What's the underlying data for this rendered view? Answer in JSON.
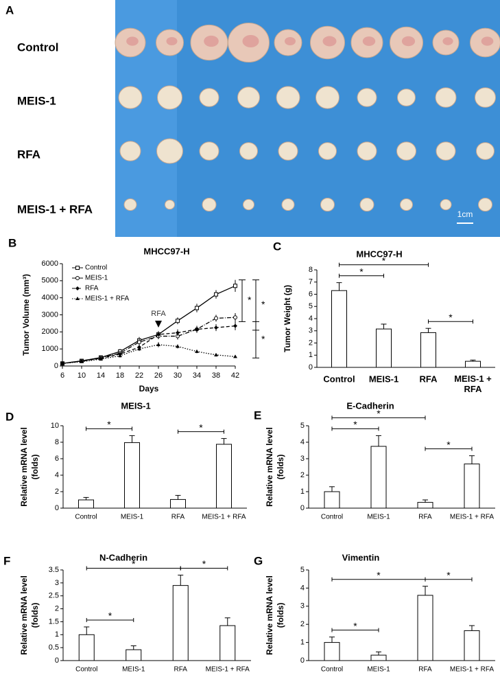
{
  "photo": {
    "panel": "A",
    "rows": [
      "Control",
      "MEIS-1",
      "RFA",
      "MEIS-1 + RFA"
    ],
    "scale_bar": "1cm"
  },
  "chart_data": [
    {
      "panel": "B",
      "type": "line",
      "title": "MHCC97-H",
      "xlabel": "Days",
      "ylabel": "Tumor Volume (mm³)",
      "x": [
        6,
        10,
        14,
        18,
        22,
        26,
        30,
        34,
        38,
        42
      ],
      "xlim": [
        6,
        42
      ],
      "xticks": [
        6,
        10,
        14,
        18,
        22,
        26,
        30,
        34,
        38,
        42
      ],
      "ylim": [
        0,
        6000
      ],
      "yticks": [
        0,
        1000,
        2000,
        3000,
        4000,
        5000,
        6000
      ],
      "legend": "top-left",
      "series": [
        {
          "name": "Control",
          "color": "#000000",
          "values": [
            150,
            300,
            500,
            850,
            1500,
            1850,
            2650,
            3400,
            4200,
            4700
          ],
          "errors": [
            80,
            90,
            100,
            150,
            200,
            200,
            200,
            250,
            250,
            350
          ]
        },
        {
          "name": "MEIS-1",
          "color": "#000000",
          "values": [
            150,
            300,
            480,
            750,
            1400,
            1750,
            1750,
            2150,
            2800,
            2850
          ],
          "errors": [
            80,
            80,
            100,
            120,
            180,
            180,
            200,
            200,
            200,
            250
          ]
        },
        {
          "name": "RFA",
          "color": "#000000",
          "values": [
            150,
            280,
            450,
            700,
            1100,
            1850,
            1950,
            2150,
            2250,
            2350
          ],
          "errors": [
            80,
            80,
            100,
            120,
            150,
            180,
            200,
            200,
            200,
            250
          ]
        },
        {
          "name": "MEIS-1 + RFA",
          "color": "#000000",
          "values": [
            150,
            250,
            400,
            600,
            1000,
            1250,
            1150,
            850,
            650,
            550
          ],
          "errors": [
            60,
            60,
            80,
            100,
            120,
            150,
            120,
            100,
            100,
            80
          ]
        }
      ],
      "annotation": {
        "text": "RFA",
        "x": 26
      },
      "significance": [
        {
          "between": [
            "Control",
            "MEIS-1"
          ],
          "label": "*"
        },
        {
          "between": [
            "Control",
            "RFA"
          ],
          "label": "*"
        },
        {
          "between": [
            "RFA",
            "MEIS-1 + RFA"
          ],
          "label": "*"
        }
      ]
    },
    {
      "panel": "C",
      "type": "bar",
      "title": "MHCC97-H",
      "ylabel": "Tumor Weight (g)",
      "categories": [
        "Control",
        "MEIS-1",
        "RFA",
        "MEIS-1 + RFA"
      ],
      "values": [
        6.3,
        3.15,
        2.85,
        0.5
      ],
      "errors": [
        0.65,
        0.4,
        0.35,
        0.1
      ],
      "ylim": [
        0,
        8
      ],
      "yticks": [
        0,
        1,
        2,
        3,
        4,
        5,
        6,
        7,
        8
      ],
      "color": "#ffffff",
      "significance": [
        {
          "between": [
            "Control",
            "MEIS-1"
          ],
          "label": "*"
        },
        {
          "between": [
            "Control",
            "RFA"
          ],
          "label": "*"
        },
        {
          "between": [
            "RFA",
            "MEIS-1 + RFA"
          ],
          "label": "*"
        }
      ]
    },
    {
      "panel": "D",
      "type": "bar",
      "title": "MEIS-1",
      "ylabel": [
        "Relative mRNA level",
        "(folds)"
      ],
      "categories": [
        "Control",
        "MEIS-1",
        "RFA",
        "MEIS-1 + RFA"
      ],
      "values": [
        1,
        7.95,
        1.05,
        7.75
      ],
      "errors": [
        0.3,
        0.85,
        0.5,
        0.7
      ],
      "ylim": [
        0,
        10
      ],
      "yticks": [
        0,
        2,
        4,
        6,
        8,
        10
      ],
      "color": "#ffffff",
      "significance": [
        {
          "between": [
            "Control",
            "MEIS-1"
          ],
          "label": "*"
        },
        {
          "between": [
            "RFA",
            "MEIS-1 + RFA"
          ],
          "label": "*"
        }
      ]
    },
    {
      "panel": "E",
      "type": "bar",
      "title": "E-Cadherin",
      "ylabel": [
        "Relative mRNA level",
        "(folds)"
      ],
      "categories": [
        "Control",
        "MEIS-1",
        "RFA",
        "MEIS-1 + RFA"
      ],
      "values": [
        1,
        3.75,
        0.35,
        2.68
      ],
      "errors": [
        0.3,
        0.65,
        0.15,
        0.5
      ],
      "ylim": [
        0,
        5
      ],
      "yticks": [
        0,
        1,
        2,
        3,
        4,
        5
      ],
      "color": "#ffffff",
      "significance": [
        {
          "between": [
            "Control",
            "MEIS-1"
          ],
          "label": "*"
        },
        {
          "between": [
            "Control",
            "RFA"
          ],
          "label": "*"
        },
        {
          "between": [
            "RFA",
            "MEIS-1 + RFA"
          ],
          "label": "*"
        }
      ]
    },
    {
      "panel": "F",
      "type": "bar",
      "title": "N-Cadherin",
      "ylabel": [
        "Relative mRNA level",
        "(folds)"
      ],
      "categories": [
        "Control",
        "MEIS-1",
        "RFA",
        "MEIS-1 + RFA"
      ],
      "values": [
        1,
        0.42,
        2.9,
        1.35
      ],
      "errors": [
        0.3,
        0.15,
        0.4,
        0.3
      ],
      "ylim": [
        0,
        3.5
      ],
      "yticks": [
        0,
        0.5,
        1,
        1.5,
        2,
        2.5,
        3,
        3.5
      ],
      "color": "#ffffff",
      "significance": [
        {
          "between": [
            "Control",
            "MEIS-1"
          ],
          "label": "*"
        },
        {
          "between": [
            "Control",
            "RFA"
          ],
          "label": "*"
        },
        {
          "between": [
            "RFA",
            "MEIS-1 + RFA"
          ],
          "label": "*"
        }
      ]
    },
    {
      "panel": "G",
      "type": "bar",
      "title": "Vimentin",
      "ylabel": [
        "Relative mRNA level",
        "(folds)"
      ],
      "categories": [
        "Control",
        "MEIS-1",
        "RFA",
        "MEIS-1 + RFA"
      ],
      "values": [
        1,
        0.3,
        3.6,
        1.65
      ],
      "errors": [
        0.3,
        0.18,
        0.5,
        0.28
      ],
      "ylim": [
        0,
        5
      ],
      "yticks": [
        0,
        1,
        2,
        3,
        4,
        5
      ],
      "color": "#ffffff",
      "significance": [
        {
          "between": [
            "Control",
            "MEIS-1"
          ],
          "label": "*"
        },
        {
          "between": [
            "Control",
            "RFA"
          ],
          "label": "*"
        },
        {
          "between": [
            "RFA",
            "MEIS-1 + RFA"
          ],
          "label": "*"
        }
      ]
    }
  ]
}
